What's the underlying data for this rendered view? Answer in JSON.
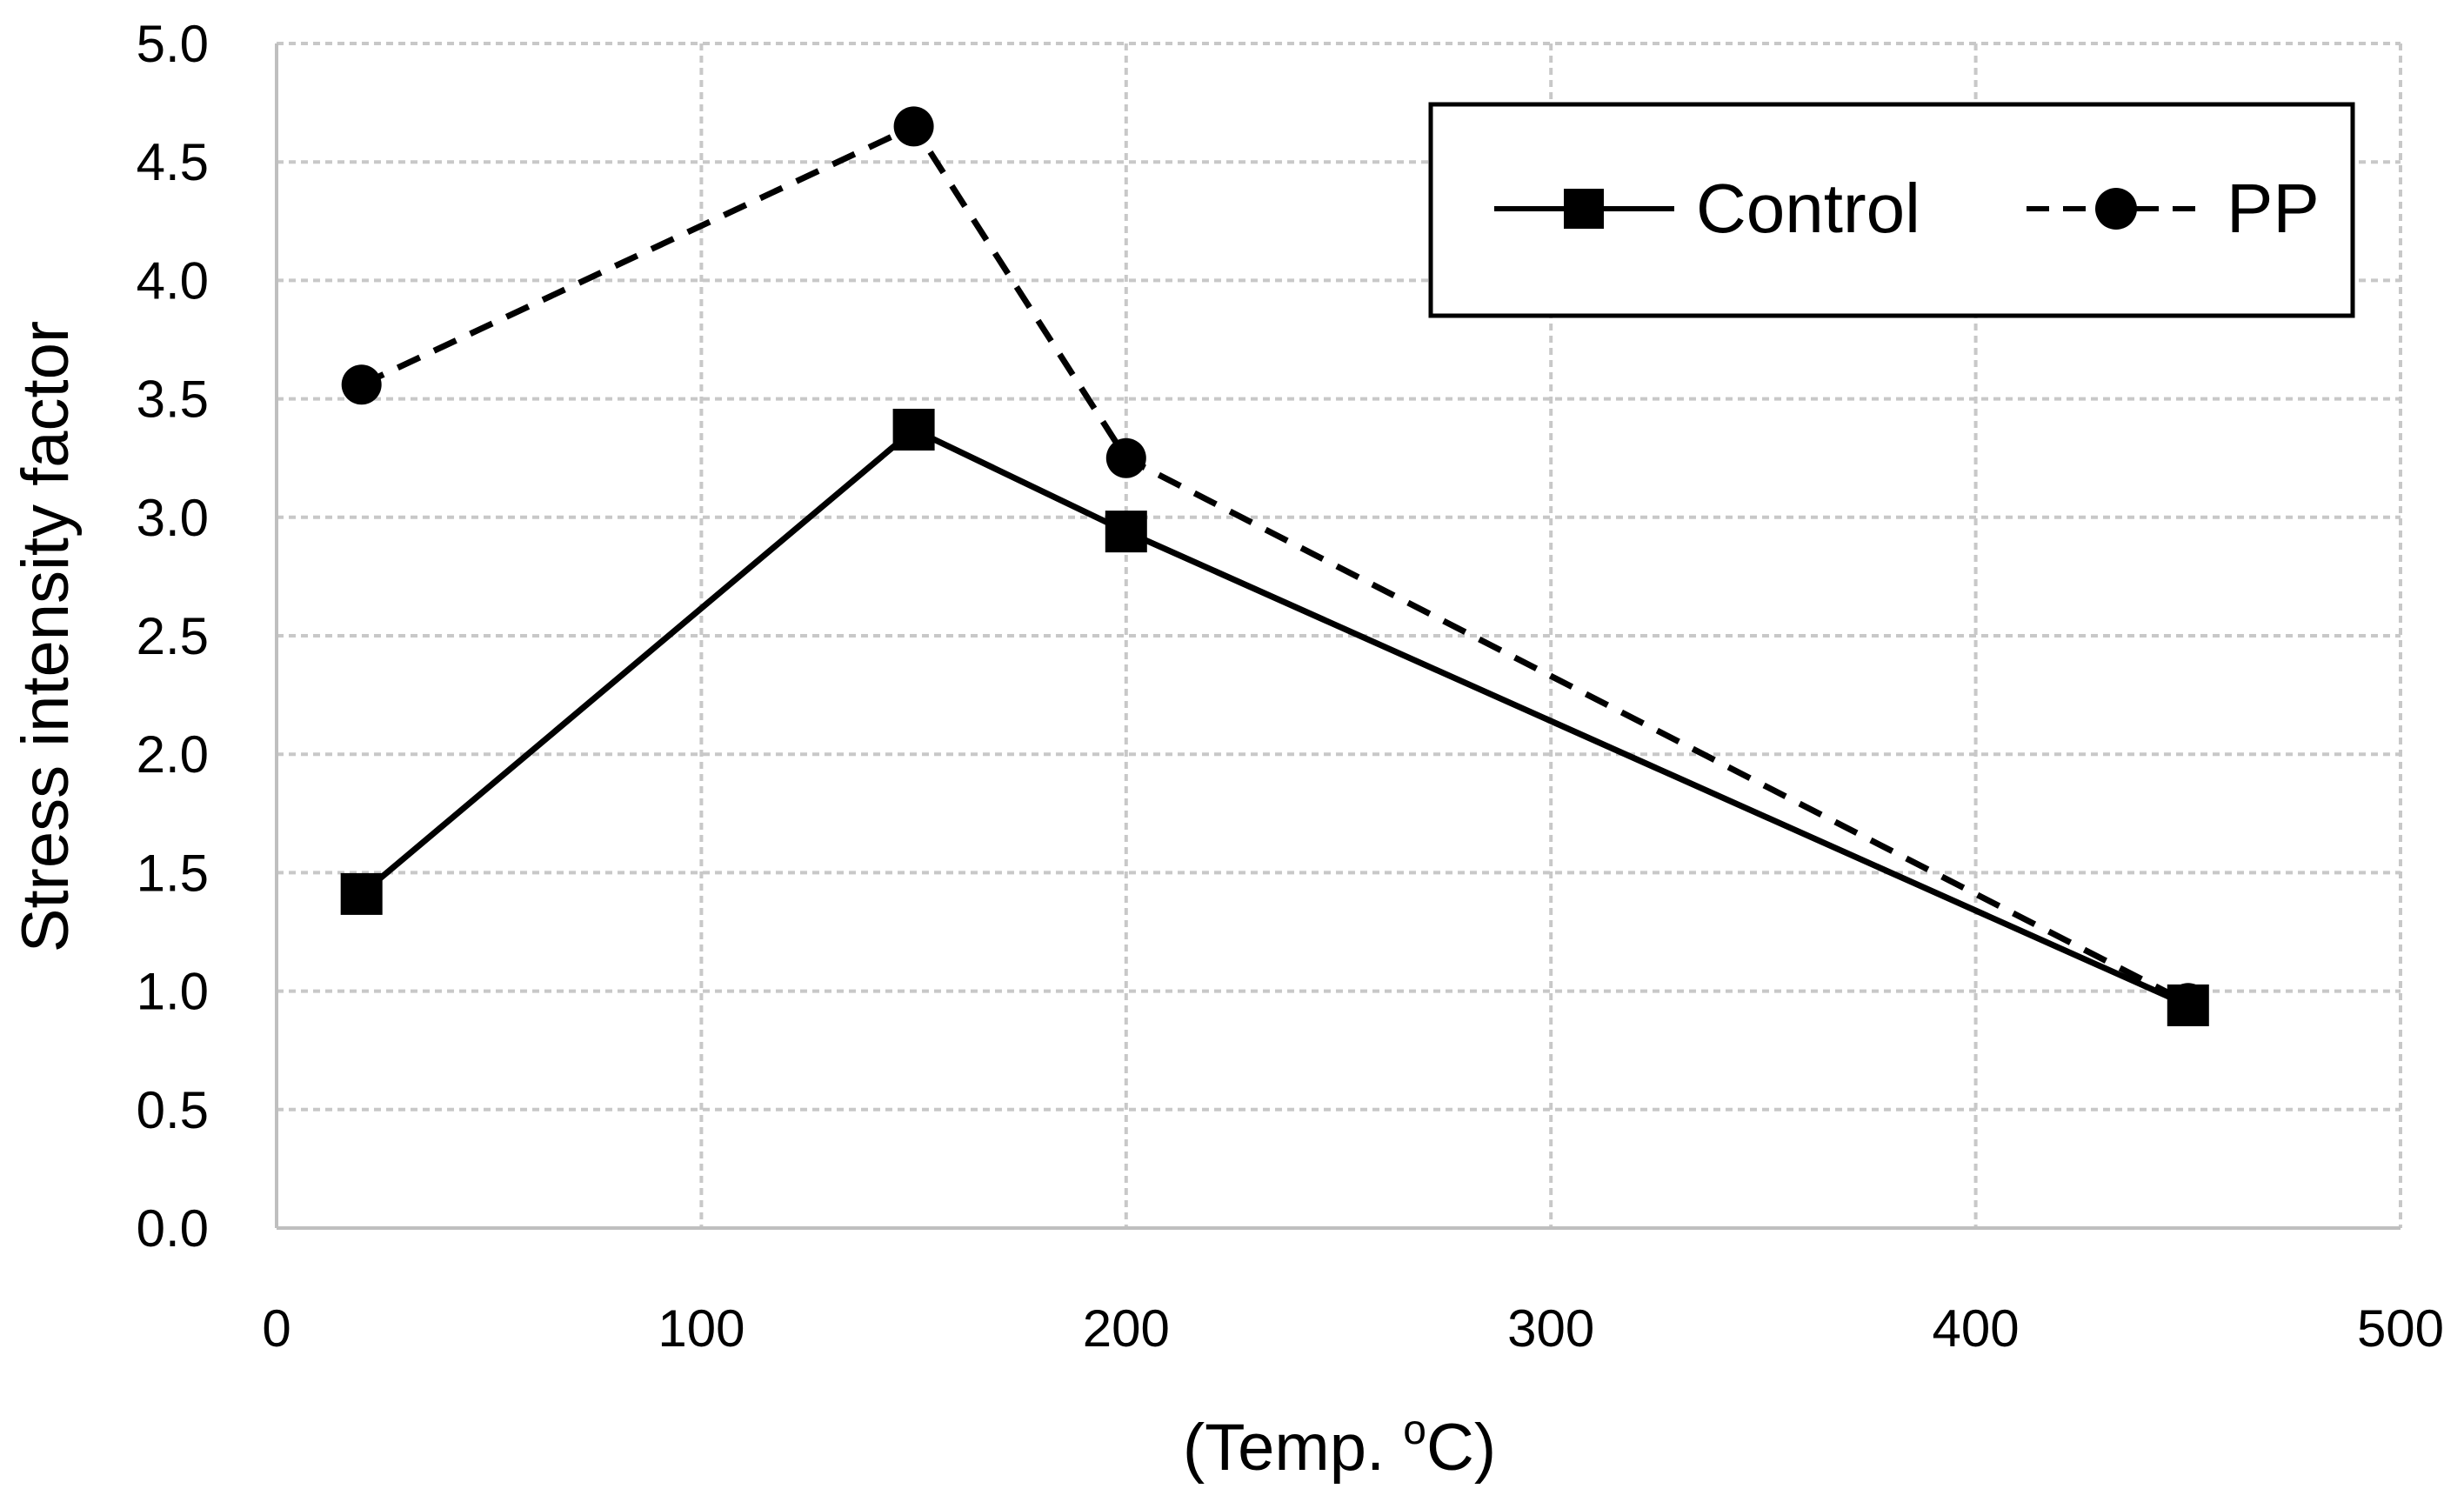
{
  "chart_data": {
    "type": "line",
    "title": "",
    "xlabel": "(Temp. °C)",
    "xlabel_prefix": "(Temp. ",
    "xlabel_superscript": "o",
    "xlabel_suffix": "C)",
    "ylabel": "Stress intensity factor",
    "xlim": [
      0,
      500
    ],
    "ylim": [
      0.0,
      5.0
    ],
    "xticks": [
      0,
      100,
      200,
      300,
      400,
      500
    ],
    "xtick_labels": [
      "0",
      "100",
      "200",
      "300",
      "400",
      "500"
    ],
    "yticks": [
      0.0,
      0.5,
      1.0,
      1.5,
      2.0,
      2.5,
      3.0,
      3.5,
      4.0,
      4.5,
      5.0
    ],
    "ytick_labels": [
      "0.0",
      "0.5",
      "1.0",
      "1.5",
      "2.0",
      "2.5",
      "3.0",
      "3.5",
      "4.0",
      "4.5",
      "5.0"
    ],
    "grid": true,
    "legend_position": "top-right",
    "series": [
      {
        "name": "Control",
        "line_style": "solid",
        "marker": "square",
        "color": "#000000",
        "x": [
          20,
          150,
          200,
          450
        ],
        "values": [
          1.41,
          3.37,
          2.94,
          0.94
        ]
      },
      {
        "name": "PP",
        "line_style": "dashed",
        "marker": "circle",
        "color": "#000000",
        "x": [
          20,
          150,
          200,
          450
        ],
        "values": [
          3.56,
          4.65,
          3.25,
          0.95
        ]
      }
    ]
  }
}
